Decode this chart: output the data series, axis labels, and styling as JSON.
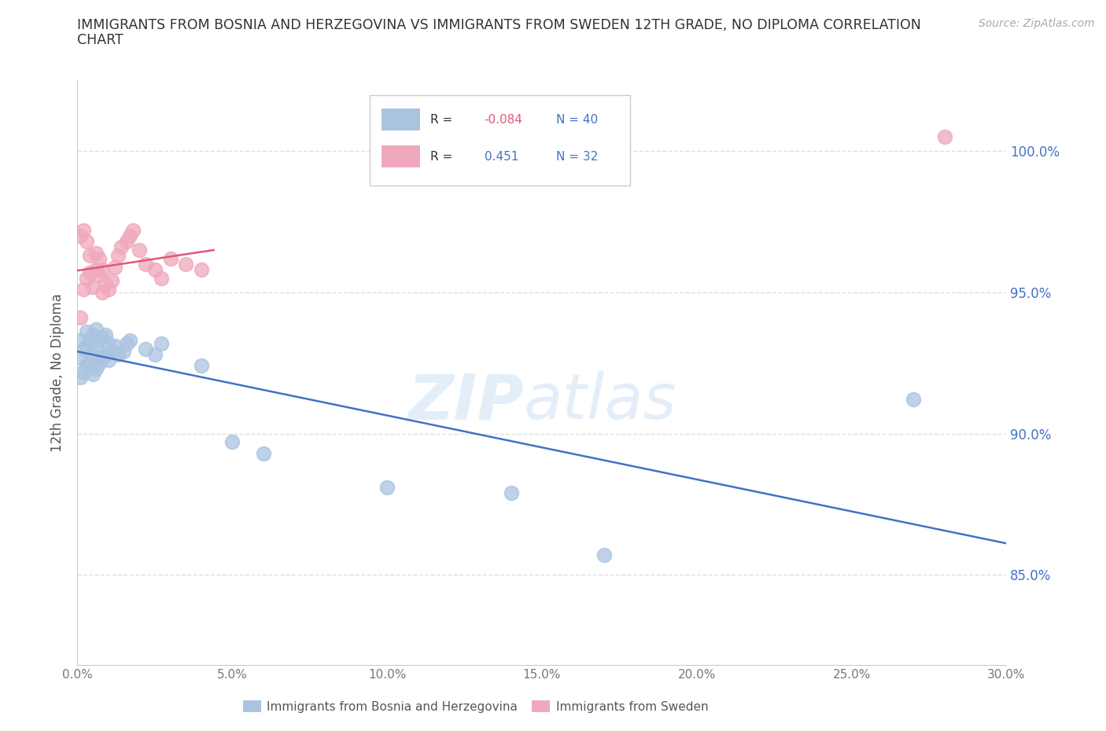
{
  "title_line1": "IMMIGRANTS FROM BOSNIA AND HERZEGOVINA VS IMMIGRANTS FROM SWEDEN 12TH GRADE, NO DIPLOMA CORRELATION",
  "title_line2": "CHART",
  "source": "Source: ZipAtlas.com",
  "ylabel": "12th Grade, No Diploma",
  "xlim": [
    0.0,
    0.3
  ],
  "ylim": [
    0.818,
    1.025
  ],
  "xtick_values": [
    0.0,
    0.05,
    0.1,
    0.15,
    0.2,
    0.25,
    0.3
  ],
  "xtick_labels": [
    "0.0%",
    "5.0%",
    "10.0%",
    "15.0%",
    "20.0%",
    "25.0%",
    "30.0%"
  ],
  "ytick_values": [
    0.85,
    0.9,
    0.95,
    1.0
  ],
  "ytick_labels": [
    "85.0%",
    "90.0%",
    "95.0%",
    "100.0%"
  ],
  "bosnia_color": "#aac4e0",
  "sweden_color": "#f0a8bc",
  "bosnia_line_color": "#4472C4",
  "sweden_line_color": "#e05878",
  "bosnia_R": -0.084,
  "bosnia_N": 40,
  "sweden_R": 0.451,
  "sweden_N": 32,
  "bosnia_x": [
    0.001,
    0.001,
    0.001,
    0.002,
    0.002,
    0.003,
    0.003,
    0.003,
    0.004,
    0.004,
    0.005,
    0.005,
    0.005,
    0.006,
    0.006,
    0.006,
    0.007,
    0.007,
    0.008,
    0.008,
    0.009,
    0.009,
    0.01,
    0.01,
    0.011,
    0.012,
    0.013,
    0.015,
    0.016,
    0.017,
    0.022,
    0.025,
    0.027,
    0.04,
    0.05,
    0.06,
    0.1,
    0.14,
    0.17,
    0.27
  ],
  "bosnia_y": [
    0.92,
    0.927,
    0.933,
    0.922,
    0.93,
    0.924,
    0.931,
    0.936,
    0.925,
    0.933,
    0.921,
    0.928,
    0.935,
    0.923,
    0.93,
    0.937,
    0.925,
    0.933,
    0.927,
    0.934,
    0.928,
    0.935,
    0.926,
    0.932,
    0.929,
    0.931,
    0.928,
    0.929,
    0.932,
    0.933,
    0.93,
    0.928,
    0.932,
    0.924,
    0.897,
    0.893,
    0.881,
    0.879,
    0.857,
    0.912
  ],
  "sweden_x": [
    0.001,
    0.001,
    0.002,
    0.002,
    0.003,
    0.003,
    0.004,
    0.004,
    0.005,
    0.006,
    0.006,
    0.007,
    0.007,
    0.008,
    0.008,
    0.009,
    0.01,
    0.011,
    0.012,
    0.013,
    0.014,
    0.016,
    0.017,
    0.018,
    0.02,
    0.022,
    0.025,
    0.027,
    0.03,
    0.035,
    0.04,
    0.28
  ],
  "sweden_y": [
    0.941,
    0.97,
    0.951,
    0.972,
    0.955,
    0.968,
    0.957,
    0.963,
    0.952,
    0.958,
    0.964,
    0.956,
    0.962,
    0.95,
    0.958,
    0.953,
    0.951,
    0.954,
    0.959,
    0.963,
    0.966,
    0.968,
    0.97,
    0.972,
    0.965,
    0.96,
    0.958,
    0.955,
    0.962,
    0.96,
    0.958,
    1.005
  ],
  "watermark_zip": "ZIP",
  "watermark_atlas": "atlas",
  "bg_color": "#ffffff",
  "grid_color": "#e0e0e0",
  "tick_color": "#777777",
  "y_tick_color": "#4472C4",
  "legend_R_color": "#4472C4",
  "legend_R_neg_color": "#e05878"
}
